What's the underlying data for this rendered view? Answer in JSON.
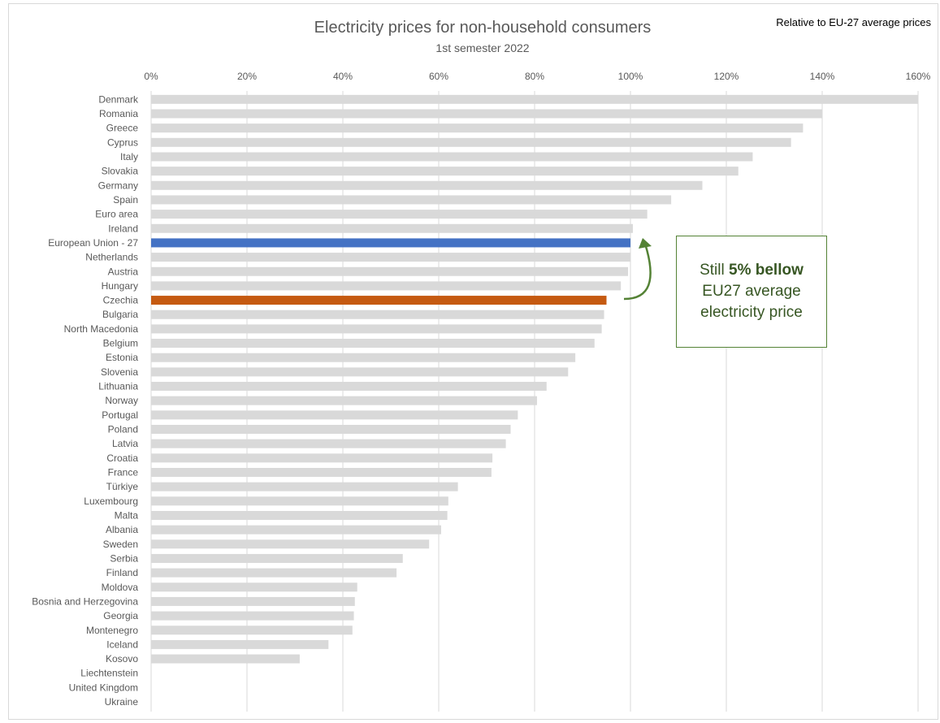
{
  "header": {
    "corner_note": "Relative to EU-27 average prices"
  },
  "callout": {
    "prefix": "Still ",
    "emphasis": "5% bellow",
    "rest": "EU27 average electricity price",
    "color": "#548235"
  },
  "colors": {
    "default_bar": "#d9d9d9",
    "eu_bar": "#4472c4",
    "highlight_bar": "#c55a11",
    "arrow": "#548235"
  },
  "chart_data": {
    "type": "bar",
    "orientation": "horizontal",
    "title": "Electricity prices for non-household consumers",
    "subtitle": "1st semester 2022",
    "x_axis_position": "top",
    "xlim": [
      0,
      160
    ],
    "x_ticks": [
      "0%",
      "20%",
      "40%",
      "60%",
      "80%",
      "100%",
      "120%",
      "140%",
      "160%"
    ],
    "grid": true,
    "legend": "none",
    "categories": [
      "Denmark",
      "Romania",
      "Greece",
      "Cyprus",
      "Italy",
      "Slovakia",
      "Germany",
      "Spain",
      "Euro area",
      "Ireland",
      "European Union - 27",
      "Netherlands",
      "Austria",
      "Hungary",
      "Czechia",
      "Bulgaria",
      "North Macedonia",
      "Belgium",
      "Estonia",
      "Slovenia",
      "Lithuania",
      "Norway",
      "Portugal",
      "Poland",
      "Latvia",
      "Croatia",
      "France",
      "Türkiye",
      "Luxembourg",
      "Malta",
      "Albania",
      "Sweden",
      "Serbia",
      "Finland",
      "Moldova",
      "Bosnia and Herzegovina",
      "Georgia",
      "Montenegro",
      "Iceland",
      "Kosovo",
      "Liechtenstein",
      "United Kingdom",
      "Ukraine"
    ],
    "values": [
      160,
      140,
      136,
      133.5,
      125.5,
      122.5,
      115,
      108.5,
      103.5,
      100.5,
      100,
      100,
      99.5,
      98,
      95,
      94.5,
      94,
      92.5,
      88.5,
      87,
      82.5,
      80.5,
      76.5,
      75,
      74,
      71.2,
      71,
      64,
      62,
      61.8,
      60.5,
      58,
      52.5,
      51.2,
      43,
      42.5,
      42.3,
      42,
      37,
      31,
      null,
      null,
      null
    ],
    "highlights": {
      "European Union - 27": "eu",
      "Czechia": "highlight"
    }
  }
}
